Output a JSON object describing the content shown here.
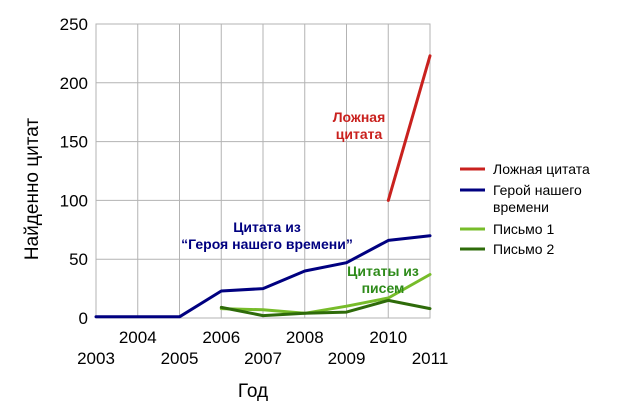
{
  "chart_data": {
    "type": "line",
    "xlabel": "Год",
    "ylabel": "Найденно цитат",
    "x": [
      2003,
      2004,
      2005,
      2006,
      2007,
      2008,
      2009,
      2010,
      2011
    ],
    "ylim": [
      0,
      250
    ],
    "yticks": [
      0,
      50,
      100,
      150,
      200,
      250
    ],
    "grid": true,
    "legend_position": "right",
    "series": [
      {
        "name": "Ложная цитата",
        "color": "#c9211e",
        "points": [
          [
            2010,
            100
          ],
          [
            2011,
            223
          ]
        ]
      },
      {
        "name": "Герой нашего времени",
        "color": "#000080",
        "points": [
          [
            2003,
            1
          ],
          [
            2004,
            1
          ],
          [
            2005,
            1
          ],
          [
            2006,
            23
          ],
          [
            2007,
            25
          ],
          [
            2008,
            40
          ],
          [
            2009,
            47
          ],
          [
            2010,
            66
          ],
          [
            2011,
            70
          ]
        ]
      },
      {
        "name": "Письмо 1",
        "color": "#77bc2a",
        "points": [
          [
            2006,
            8
          ],
          [
            2007,
            7
          ],
          [
            2008,
            4
          ],
          [
            2009,
            10
          ],
          [
            2010,
            17
          ],
          [
            2011,
            37
          ]
        ]
      },
      {
        "name": "Письмо 2",
        "color": "#2e6b0a",
        "points": [
          [
            2006,
            9
          ],
          [
            2007,
            2
          ],
          [
            2008,
            4
          ],
          [
            2009,
            5
          ],
          [
            2010,
            15
          ],
          [
            2011,
            8
          ]
        ]
      }
    ],
    "annotations": [
      {
        "lines": [
          "Ложная",
          "цитата"
        ],
        "color": "#c9211e"
      },
      {
        "lines": [
          "Цитата из",
          "“Героя нашего времени”"
        ],
        "color": "#000080"
      },
      {
        "lines": [
          "Цитаты из",
          "писем"
        ],
        "color": "#2e8b1a"
      }
    ]
  }
}
